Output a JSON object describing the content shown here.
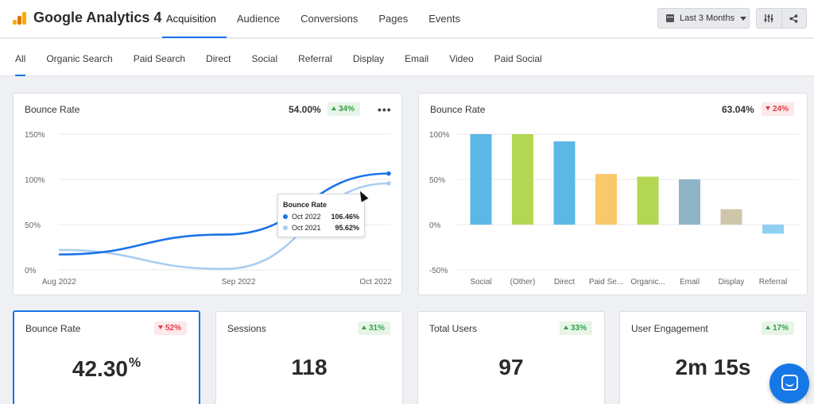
{
  "app": {
    "title": "Google Analytics 4"
  },
  "main_nav": [
    {
      "label": "Acquisition",
      "active": true
    },
    {
      "label": "Audience",
      "active": false
    },
    {
      "label": "Conversions",
      "active": false
    },
    {
      "label": "Pages",
      "active": false
    },
    {
      "label": "Events",
      "active": false
    }
  ],
  "date_range": {
    "label": "Last 3 Months",
    "icon": "calendar-icon"
  },
  "toolbar": {
    "filter_icon": "sliders-icon",
    "share_icon": "share-icon"
  },
  "channel_tabs": [
    {
      "label": "All",
      "active": true
    },
    {
      "label": "Organic Search",
      "active": false
    },
    {
      "label": "Paid Search",
      "active": false
    },
    {
      "label": "Direct",
      "active": false
    },
    {
      "label": "Social",
      "active": false
    },
    {
      "label": "Referral",
      "active": false
    },
    {
      "label": "Display",
      "active": false
    },
    {
      "label": "Email",
      "active": false
    },
    {
      "label": "Video",
      "active": false
    },
    {
      "label": "Paid Social",
      "active": false
    }
  ],
  "line_card": {
    "title": "Bounce Rate",
    "value": "54.00%",
    "change": "34%",
    "trend": "up",
    "more_label": "•••",
    "tooltip": {
      "title": "Bounce Rate",
      "rows": [
        {
          "label": "Oct 2022",
          "value": "106.46%"
        },
        {
          "label": "Oct 2021",
          "value": "95.62%"
        }
      ]
    }
  },
  "bar_card": {
    "title": "Bounce Rate",
    "value": "63.04%",
    "change": "24%",
    "trend": "down"
  },
  "kpis": [
    {
      "title": "Bounce Rate",
      "value": "42.30",
      "unit": "%",
      "change": "52%",
      "trend": "down",
      "selected": true
    },
    {
      "title": "Sessions",
      "value": "118",
      "unit": "",
      "change": "31%",
      "trend": "up",
      "selected": false
    },
    {
      "title": "Total Users",
      "value": "97",
      "unit": "",
      "change": "33%",
      "trend": "up",
      "selected": false
    },
    {
      "title": "User Engagement",
      "value": "2m 15s",
      "unit": "",
      "change": "17%",
      "trend": "up",
      "selected": false
    }
  ],
  "colors": {
    "accent": "#1a73e8",
    "series_current": "#1a73e8",
    "series_previous": "#a9cdf1",
    "up": "#35a24a",
    "down": "#e03c4a",
    "chat_button": "#1677e6"
  },
  "chart_data": [
    {
      "type": "line",
      "title": "Bounce Rate",
      "x": [
        "Aug 2022",
        "Sep 2022",
        "Oct 2022"
      ],
      "ylim": [
        0,
        150
      ],
      "y_ticks": [
        "150%",
        "100%",
        "50%",
        "0%"
      ],
      "y_tick_values": [
        150,
        100,
        50,
        0
      ],
      "grid": true,
      "series": [
        {
          "name": "Oct 2022",
          "values": [
            17,
            39,
            106.46
          ],
          "color": "#1a73e8"
        },
        {
          "name": "Oct 2021",
          "values": [
            22,
            1,
            95.62
          ],
          "color": "#a9cdf1"
        }
      ]
    },
    {
      "type": "bar",
      "title": "Bounce Rate",
      "categories": [
        "Social",
        "(Other)",
        "Direct",
        "Paid Se...",
        "Organic...",
        "Email",
        "Display",
        "Referral"
      ],
      "values": [
        100,
        100,
        92,
        56,
        53,
        50,
        17,
        -10
      ],
      "colors": [
        "#5bb8e6",
        "#b3d752",
        "#5bb8e6",
        "#f9c869",
        "#b3d752",
        "#8fb4c8",
        "#cfc5a8",
        "#8fd0f0"
      ],
      "ylim": [
        -50,
        100
      ],
      "y_ticks": [
        "100%",
        "50%",
        "0%",
        "-50%"
      ],
      "y_tick_values": [
        100,
        50,
        0,
        -50
      ],
      "grid": true
    }
  ]
}
